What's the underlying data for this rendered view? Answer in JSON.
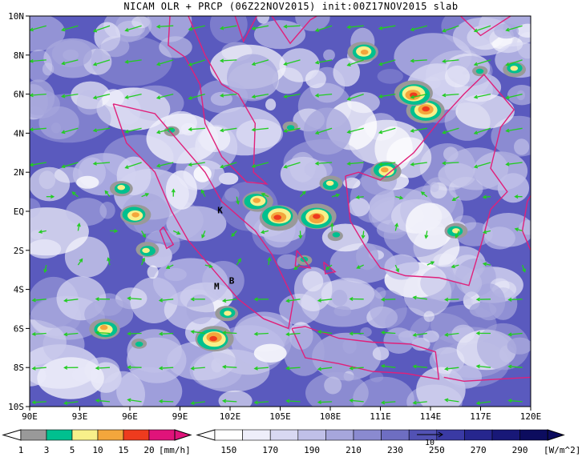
{
  "title": "NICAM OLR + PRCP (06Z22NOV2015) init:00Z17NOV2015 slab",
  "x_ticks": [
    "90E",
    "93E",
    "96E",
    "99E",
    "102E",
    "105E",
    "108E",
    "111E",
    "114E",
    "117E",
    "120E"
  ],
  "y_ticks": [
    "10N",
    "8N",
    "6N",
    "4N",
    "2N",
    "EQ",
    "2S",
    "4S",
    "6S",
    "8S",
    "10S"
  ],
  "map_labels": [
    {
      "text": "K",
      "lon": 101.4,
      "lat": -0.1
    },
    {
      "text": "M",
      "lon": 101.2,
      "lat": -4.0
    },
    {
      "text": "B",
      "lon": 102.1,
      "lat": -3.7
    }
  ],
  "precip_colorbar": {
    "labels": [
      "1",
      "3",
      "5",
      "10",
      "15",
      "20"
    ],
    "unit": "[mm/h]",
    "colors": [
      "#999999",
      "#00c08f",
      "#f8f08a",
      "#f3a63c",
      "#ee3b1e",
      "#e0137a"
    ]
  },
  "olr_colorbar": {
    "labels": [
      "150",
      "170",
      "190",
      "210",
      "230",
      "250",
      "270",
      "290"
    ],
    "unit": "[W/m^2]",
    "colors": [
      "#ffffff",
      "#eeeefa",
      "#d8d8f2",
      "#c0c0e8",
      "#a6a6dc",
      "#8a8ad0",
      "#6e6ec2",
      "#5252b4",
      "#3a3aa4",
      "#26268e",
      "#181878",
      "#0c0c5e"
    ]
  },
  "vector_ref_label": "10",
  "colors": {
    "vector": "#22cc22",
    "coast": "#e0207a",
    "frame": "#000000"
  }
}
